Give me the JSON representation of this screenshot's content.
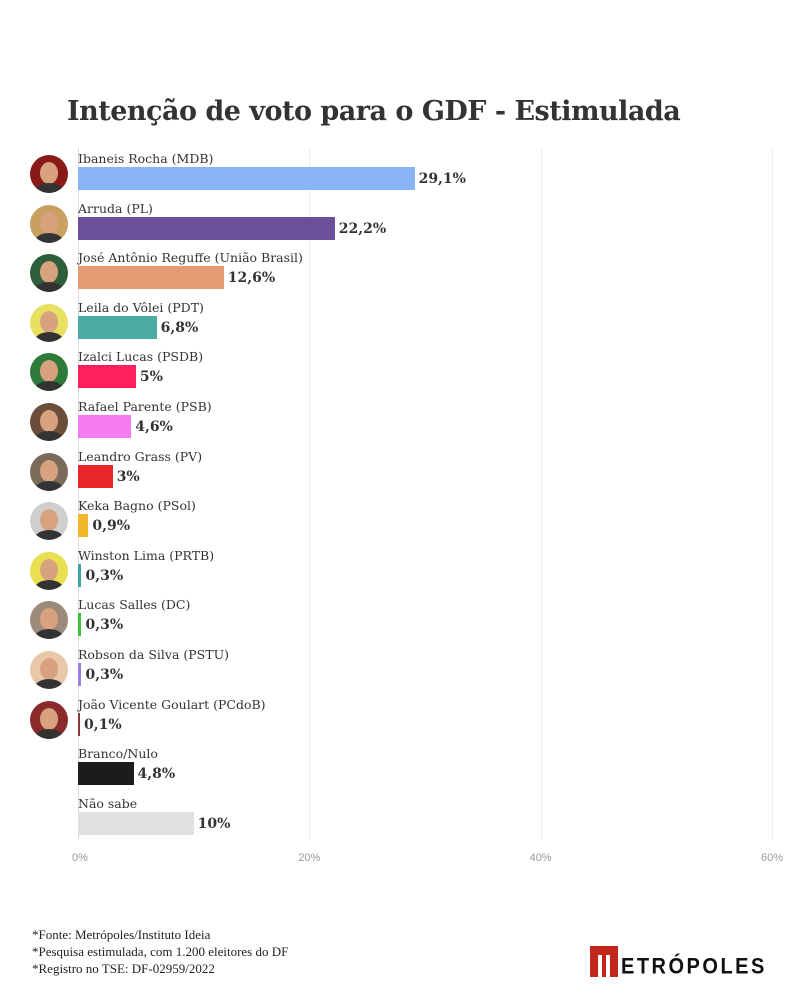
{
  "chart_data": {
    "type": "bar",
    "orientation": "horizontal",
    "title": "Intenção de voto para o GDF - Estimulada",
    "xlabel": "",
    "ylabel": "",
    "xlim": [
      0,
      60
    ],
    "x_ticks": [
      "0%",
      "20%",
      "40%",
      "60%"
    ],
    "x_tick_values": [
      0,
      20,
      40,
      60
    ],
    "grid": true,
    "categories": [
      "Ibaneis Rocha (MDB)",
      "Arruda (PL)",
      "José Antônio Reguffe (União Brasil)",
      "Leila do Vôlei (PDT)",
      "Izalci Lucas (PSDB)",
      "Rafael Parente (PSB)",
      "Leandro Grass (PV)",
      "Keka Bagno (PSol)",
      "Winston Lima (PRTB)",
      "Lucas Salles (DC)",
      "Robson da Silva (PSTU)",
      "João Vicente Goulart (PCdoB)",
      "Branco/Nulo",
      "Não sabe"
    ],
    "values": [
      29.1,
      22.2,
      12.6,
      6.8,
      5,
      4.6,
      3,
      0.9,
      0.3,
      0.3,
      0.3,
      0.1,
      4.8,
      10
    ],
    "value_labels": [
      "29,1%",
      "22,2%",
      "12,6%",
      "6,8%",
      "5%",
      "4,6%",
      "3%",
      "0,9%",
      "0,3%",
      "0,3%",
      "0,3%",
      "0,1%",
      "4,8%",
      "10%"
    ],
    "colors": [
      "#8ab4f8",
      "#6b4f9a",
      "#e59a72",
      "#4aaba5",
      "#ff1f5a",
      "#f77cf0",
      "#e8262a",
      "#f0b82a",
      "#3ea6a0",
      "#3cc43c",
      "#9b7fe0",
      "#8b3a3a",
      "#1c1c1c",
      "#e0e0e0"
    ],
    "has_photo": [
      true,
      true,
      true,
      true,
      true,
      true,
      true,
      true,
      true,
      true,
      true,
      true,
      false,
      false
    ],
    "photo_bg": [
      "#8a1a1a",
      "#c9a062",
      "#2e5e3a",
      "#e8e060",
      "#2e7a3a",
      "#6b4e3a",
      "#7a6a5a",
      "#cfcfcf",
      "#e8e050",
      "#9c8a7a",
      "#e8c8a8",
      "#8a2a2a"
    ]
  },
  "footer": {
    "lines": [
      "*Fonte: Metrópoles/Instituto Ideia",
      "*Pesquisa estimulada, com 1.200 eleitores do DF",
      "*Registro no TSE: DF-02959/2022"
    ]
  },
  "logo": {
    "text": "ETRÓPOLES",
    "full": "METRÓPOLES"
  }
}
